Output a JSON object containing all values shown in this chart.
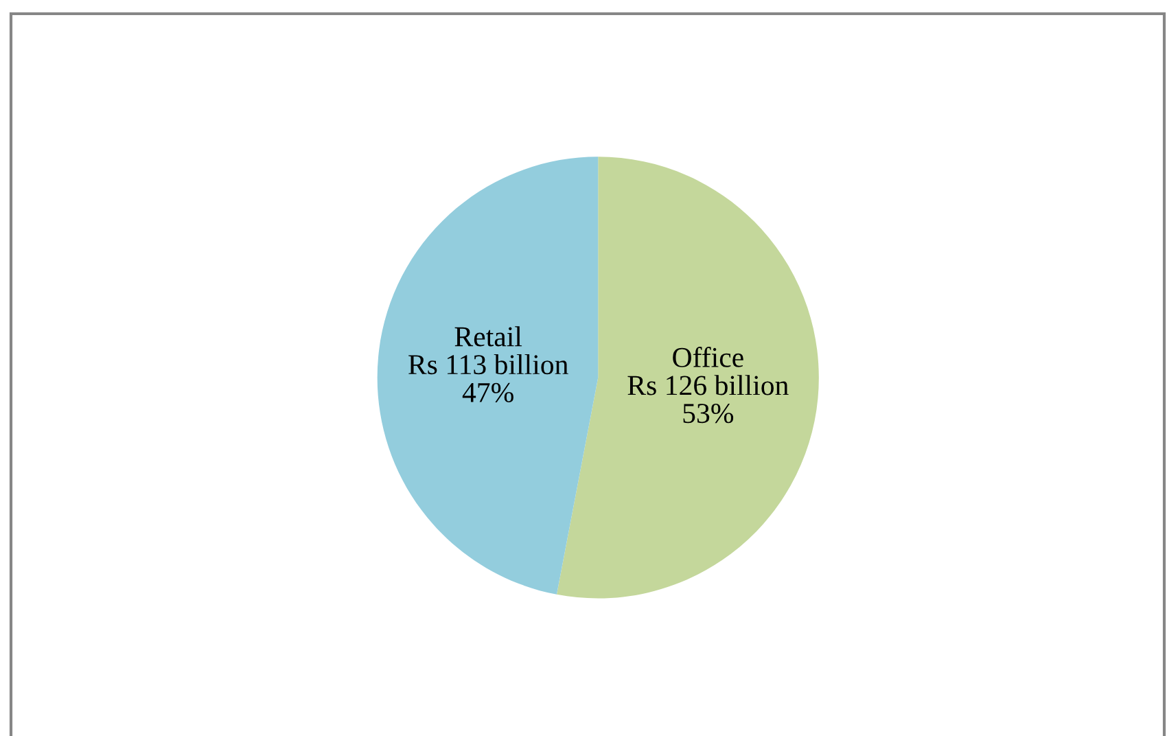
{
  "chart_data": {
    "type": "pie",
    "categories": [
      "Office",
      "Retail"
    ],
    "values": [
      53,
      47
    ],
    "colors": [
      "#c4d79b",
      "#93cddd"
    ],
    "value_labels": [
      "Rs 126 billion\n53%",
      "Rs 113 billion\n47%"
    ],
    "legend": false
  }
}
